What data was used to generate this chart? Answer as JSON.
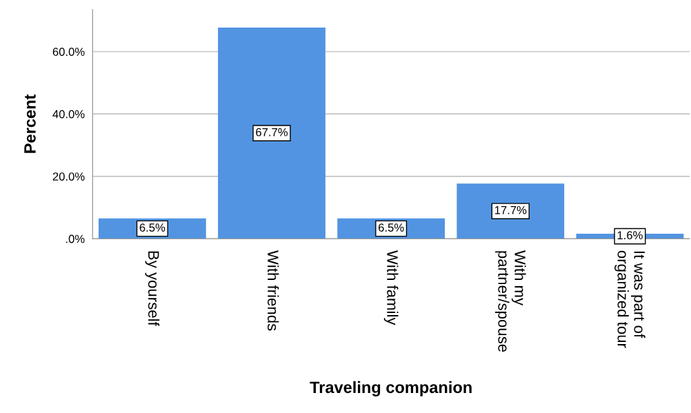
{
  "chart_data": {
    "type": "bar",
    "xlabel": "Traveling companion",
    "ylabel": "Percent",
    "categories": [
      "By yourself",
      "With friends",
      "With family",
      "With my\npartner/spouse",
      "It was part of\norganized tour"
    ],
    "values": [
      6.5,
      67.7,
      6.5,
      17.7,
      1.6
    ],
    "value_labels": [
      "6.5%",
      "67.7%",
      "6.5%",
      "17.7%",
      "1.6%"
    ],
    "color": "#5294e2",
    "ylim": [
      0,
      73.5
    ],
    "yticks": [
      {
        "value": 0,
        "label": ".0%"
      },
      {
        "value": 20,
        "label": "20.0%"
      },
      {
        "value": 40,
        "label": "40.0%"
      },
      {
        "value": 60,
        "label": "60.0%"
      }
    ],
    "grid": "y"
  }
}
